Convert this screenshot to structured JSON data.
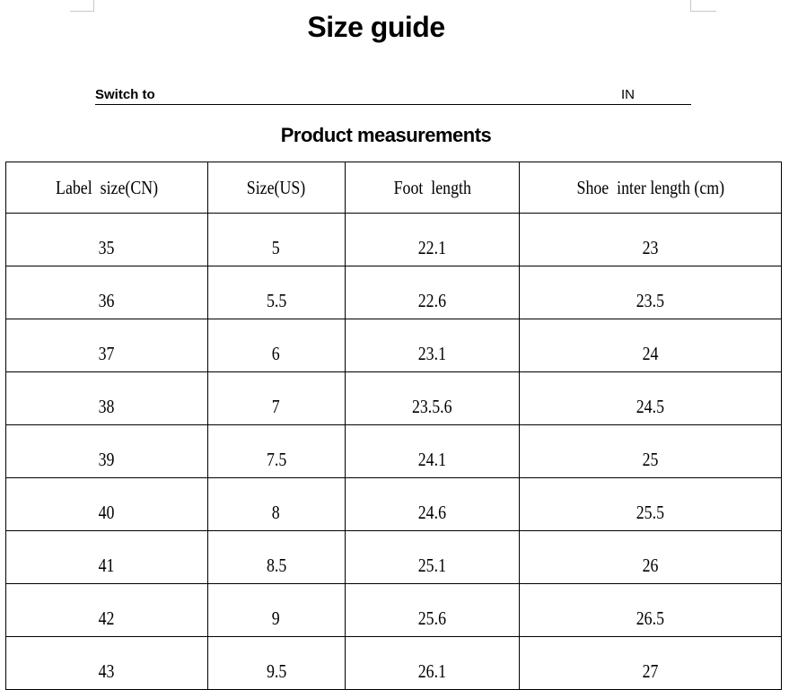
{
  "title": "Size guide",
  "switch": {
    "label": "Switch to",
    "unit": "IN"
  },
  "subtitle": "Product measurements",
  "table": {
    "headers": [
      "Label  size(CN)",
      "Size(US)",
      "Foot  length",
      "Shoe  inter length (cm)"
    ],
    "rows": [
      [
        "35",
        "5",
        "22.1",
        "23"
      ],
      [
        "36",
        "5.5",
        "22.6",
        "23.5"
      ],
      [
        "37",
        "6",
        "23.1",
        "24"
      ],
      [
        "38",
        "7",
        "23.5.6",
        "24.5"
      ],
      [
        "39",
        "7.5",
        "24.1",
        "25"
      ],
      [
        "40",
        "8",
        "24.6",
        "25.5"
      ],
      [
        "41",
        "8.5",
        "25.1",
        "26"
      ],
      [
        "42",
        "9",
        "25.6",
        "26.5"
      ],
      [
        "43",
        "9.5",
        "26.1",
        "27"
      ]
    ]
  }
}
